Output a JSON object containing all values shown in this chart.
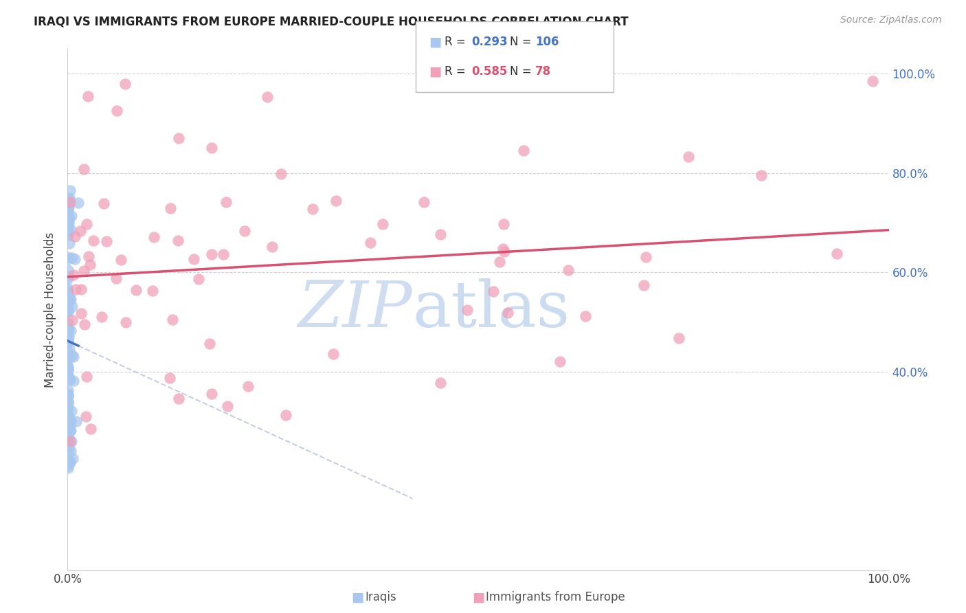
{
  "title": "IRAQI VS IMMIGRANTS FROM EUROPE MARRIED-COUPLE HOUSEHOLDS CORRELATION CHART",
  "source": "Source: ZipAtlas.com",
  "ylabel": "Married-couple Households",
  "iraqis_R": 0.293,
  "iraqis_N": 106,
  "europe_R": 0.585,
  "europe_N": 78,
  "iraqis_color": "#a8c8f0",
  "europe_color": "#f0a0b8",
  "iraqis_line_color": "#4472C4",
  "europe_line_color": "#D95070",
  "background_color": "#ffffff",
  "watermark_color": "#ddeeff",
  "grid_color": "#cccccc",
  "title_color": "#222222",
  "source_color": "#999999",
  "label_color_blue": "#4472C4",
  "label_color_pink": "#D95070",
  "xlim": [
    0.0,
    1.0
  ],
  "ylim": [
    0.0,
    1.05
  ],
  "yticks": [
    0.4,
    0.6,
    0.8,
    1.0
  ],
  "ytick_labels": [
    "40.0%",
    "60.0%",
    "80.0%",
    "100.0%"
  ],
  "xticks": [
    0.0,
    0.2,
    0.4,
    0.6,
    0.8,
    1.0
  ],
  "xtick_labels": [
    "0.0%",
    "",
    "",
    "",
    "",
    "100.0%"
  ]
}
